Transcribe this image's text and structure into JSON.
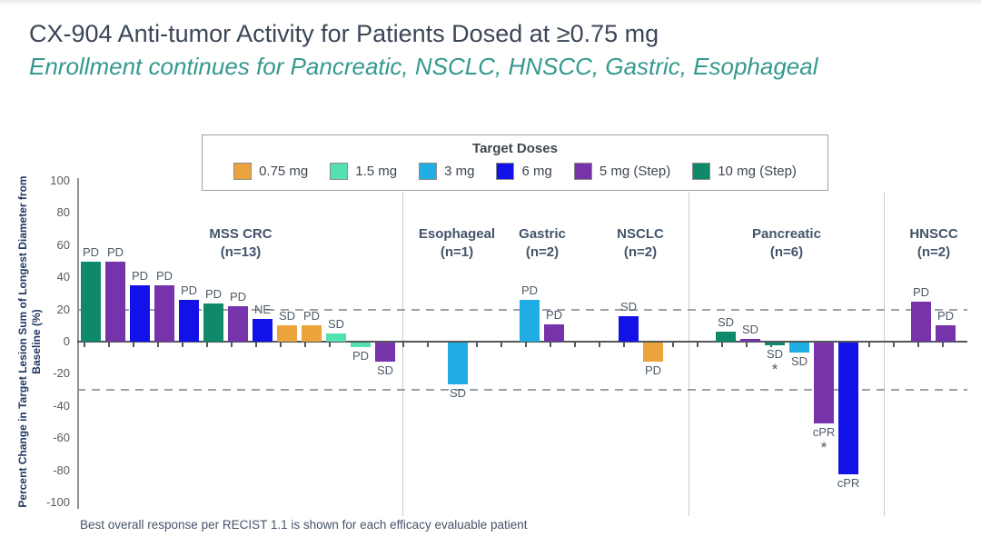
{
  "slide": {
    "title": "CX-904 Anti-tumor Activity for Patients Dosed at ≥0.75 mg",
    "subtitle": "Enrollment continues for Pancreatic, NSCLC, HNSCC, Gastric, Esophageal",
    "footnote": "Best overall response per RECIST 1.1 is shown for each efficacy evaluable patient",
    "accent_colors": {
      "title": "#3b4657",
      "subtitle": "#35998e"
    }
  },
  "chart_data": {
    "type": "bar",
    "variant": "waterfall",
    "title": "CX-904 Anti-tumor Activity for Patients Dosed at ≥0.75 mg",
    "xlabel": "",
    "ylabel": "Percent Change in Target Lesion Sum of Longest Diameter from Baseline (%)",
    "ylim": [
      -100,
      100
    ],
    "yticks": [
      100,
      80,
      60,
      40,
      20,
      0,
      -20,
      -40,
      -60,
      -80,
      -100
    ],
    "reference_lines_pct": [
      20,
      -30
    ],
    "grid": "off",
    "legend_position": "top",
    "legend": {
      "title": "Target Doses",
      "entries": [
        {
          "label": "0.75 mg",
          "color": "#EBA33C"
        },
        {
          "label": "1.5 mg",
          "color": "#55E0B0"
        },
        {
          "label": "3 mg",
          "color": "#1FADE4"
        },
        {
          "label": "6 mg",
          "color": "#1111E8"
        },
        {
          "label": "5 mg (Step)",
          "color": "#7733AA"
        },
        {
          "label": "10 mg (Step)",
          "color": "#0E8A6A"
        }
      ]
    },
    "groups": [
      {
        "name": "MSS CRC",
        "n_label": "(n=13)",
        "patients": [
          {
            "value": 50,
            "dose": "10 mg (Step)",
            "response": "PD"
          },
          {
            "value": 50,
            "dose": "5 mg (Step)",
            "response": "PD"
          },
          {
            "value": 35,
            "dose": "6 mg",
            "response": "PD"
          },
          {
            "value": 35,
            "dose": "5 mg (Step)",
            "response": "PD"
          },
          {
            "value": 26,
            "dose": "6 mg",
            "response": "PD"
          },
          {
            "value": 24,
            "dose": "10 mg (Step)",
            "response": "PD"
          },
          {
            "value": 22,
            "dose": "5 mg (Step)",
            "response": "PD"
          },
          {
            "value": 14,
            "dose": "6 mg",
            "response": "NE"
          },
          {
            "value": 10,
            "dose": "0.75 mg",
            "response": "SD"
          },
          {
            "value": 10,
            "dose": "0.75 mg",
            "response": "PD"
          },
          {
            "value": 5,
            "dose": "1.5 mg",
            "response": "SD"
          },
          {
            "value": -3,
            "dose": "1.5 mg",
            "response": "PD"
          },
          {
            "value": -12,
            "dose": "5 mg (Step)",
            "response": "SD"
          }
        ]
      },
      {
        "name": "Esophageal",
        "n_label": "(n=1)",
        "patients": [
          {
            "value": -26,
            "dose": "3 mg",
            "response": "SD"
          }
        ]
      },
      {
        "name": "Gastric",
        "n_label": "(n=2)",
        "patients": [
          {
            "value": 26,
            "dose": "3 mg",
            "response": "PD"
          },
          {
            "value": 11,
            "dose": "5 mg (Step)",
            "response": "PD"
          }
        ]
      },
      {
        "name": "NSCLC",
        "n_label": "(n=2)",
        "patients": [
          {
            "value": 16,
            "dose": "6 mg",
            "response": "SD"
          },
          {
            "value": -12,
            "dose": "0.75 mg",
            "response": "PD"
          }
        ]
      },
      {
        "name": "Pancreatic",
        "n_label": "(n=6)",
        "patients": [
          {
            "value": 6,
            "dose": "10 mg (Step)",
            "response": "SD"
          },
          {
            "value": 1.5,
            "dose": "5 mg (Step)",
            "response": "SD"
          },
          {
            "value": -1.5,
            "dose": "10 mg (Step)",
            "response": "SD",
            "star": true
          },
          {
            "value": -6,
            "dose": "3 mg",
            "response": "SD"
          },
          {
            "value": -50,
            "dose": "5 mg (Step)",
            "response": "cPR",
            "star": true
          },
          {
            "value": -82,
            "dose": "6 mg",
            "response": "cPR"
          }
        ]
      },
      {
        "name": "HNSCC",
        "n_label": "(n=2)",
        "patients": [
          {
            "value": 25,
            "dose": "5 mg (Step)",
            "response": "PD"
          },
          {
            "value": 10,
            "dose": "5 mg (Step)",
            "response": "PD"
          }
        ]
      }
    ]
  }
}
